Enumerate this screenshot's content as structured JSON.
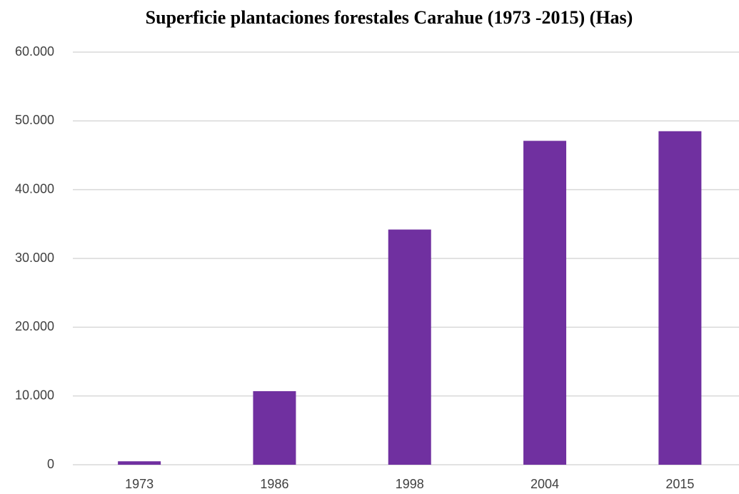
{
  "chart_data": {
    "type": "bar",
    "title": "Superficie plantaciones forestales Carahue (1973 -2015) (Has)",
    "categories": [
      "1973",
      "1986",
      "1998",
      "2004",
      "2015"
    ],
    "values": [
      500,
      10700,
      34200,
      47100,
      48500
    ],
    "color": "#7030a0",
    "ylim": [
      0,
      60000
    ],
    "yticks": [
      0,
      {
        "value": 10000,
        "label": "10.000"
      },
      {
        "value": 20000,
        "label": "20.000"
      },
      {
        "value": 30000,
        "label": "30.000"
      },
      {
        "value": 40000,
        "label": "40.000"
      },
      {
        "value": 50000,
        "label": "50.000"
      },
      {
        "value": 60000,
        "label": "60.000"
      }
    ],
    "grid": true
  }
}
